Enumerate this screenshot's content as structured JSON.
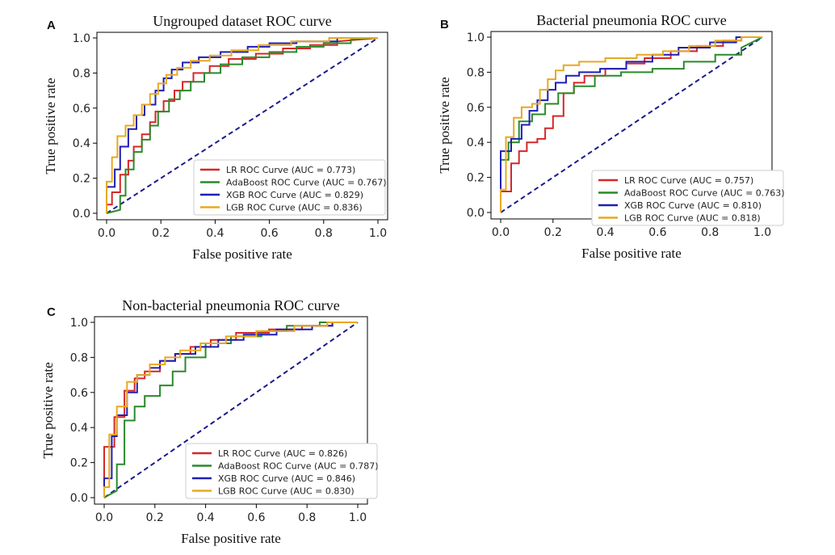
{
  "chart_data": [
    {
      "panel": "A",
      "type": "line",
      "title": "Ungrouped dataset ROC curve",
      "xlabel": "False positive rate",
      "ylabel": "True positive rate",
      "xlim": [
        0,
        1
      ],
      "ylim": [
        0,
        1
      ],
      "ticks": [
        "0.0",
        "0.2",
        "0.4",
        "0.6",
        "0.8",
        "1.0"
      ],
      "legend_position": "lower-right",
      "diagonal_color": "#1a1a8c",
      "series": [
        {
          "name": "LR ROC Curve (AUC = 0.773)",
          "color": "#d62728",
          "x": [
            0,
            0,
            0.02,
            0.02,
            0.05,
            0.05,
            0.08,
            0.08,
            0.1,
            0.1,
            0.13,
            0.13,
            0.16,
            0.16,
            0.18,
            0.18,
            0.21,
            0.21,
            0.25,
            0.25,
            0.28,
            0.28,
            0.32,
            0.32,
            0.38,
            0.38,
            0.45,
            0.45,
            0.55,
            0.55,
            0.65,
            0.65,
            0.75,
            0.75,
            0.85,
            0.85,
            1.0
          ],
          "y": [
            0,
            0.05,
            0.05,
            0.12,
            0.12,
            0.22,
            0.22,
            0.3,
            0.3,
            0.38,
            0.38,
            0.45,
            0.45,
            0.52,
            0.52,
            0.58,
            0.58,
            0.64,
            0.64,
            0.7,
            0.7,
            0.75,
            0.75,
            0.8,
            0.8,
            0.84,
            0.84,
            0.88,
            0.88,
            0.91,
            0.91,
            0.94,
            0.94,
            0.96,
            0.96,
            0.98,
            1.0
          ]
        },
        {
          "name": "AdaBoost ROC Curve (AUC = 0.767)",
          "color": "#2a8a2a",
          "x": [
            0,
            0.05,
            0.05,
            0.07,
            0.07,
            0.1,
            0.1,
            0.13,
            0.13,
            0.16,
            0.16,
            0.19,
            0.19,
            0.23,
            0.23,
            0.27,
            0.27,
            0.31,
            0.31,
            0.36,
            0.36,
            0.42,
            0.42,
            0.5,
            0.5,
            0.6,
            0.6,
            0.7,
            0.7,
            0.8,
            0.8,
            0.9,
            0.9,
            1.0
          ],
          "y": [
            0,
            0.02,
            0.1,
            0.1,
            0.25,
            0.25,
            0.35,
            0.35,
            0.42,
            0.42,
            0.5,
            0.5,
            0.58,
            0.58,
            0.65,
            0.65,
            0.7,
            0.7,
            0.75,
            0.75,
            0.8,
            0.8,
            0.85,
            0.85,
            0.89,
            0.89,
            0.92,
            0.92,
            0.95,
            0.95,
            0.97,
            0.97,
            0.99,
            1.0
          ]
        },
        {
          "name": "XGB ROC Curve (AUC = 0.829)",
          "color": "#1f1fb4",
          "x": [
            0,
            0,
            0.03,
            0.03,
            0.05,
            0.05,
            0.08,
            0.08,
            0.11,
            0.11,
            0.14,
            0.14,
            0.18,
            0.18,
            0.21,
            0.21,
            0.24,
            0.24,
            0.28,
            0.28,
            0.34,
            0.34,
            0.42,
            0.42,
            0.52,
            0.52,
            0.6,
            0.6,
            0.7,
            0.7,
            0.85,
            0.85,
            1.0
          ],
          "y": [
            0,
            0.15,
            0.15,
            0.25,
            0.25,
            0.38,
            0.38,
            0.48,
            0.48,
            0.56,
            0.56,
            0.62,
            0.62,
            0.7,
            0.7,
            0.77,
            0.77,
            0.82,
            0.82,
            0.86,
            0.86,
            0.89,
            0.89,
            0.92,
            0.92,
            0.95,
            0.95,
            0.97,
            0.97,
            0.98,
            0.98,
            1.0,
            1.0
          ]
        },
        {
          "name": "LGB ROC Curve (AUC = 0.836)",
          "color": "#e8a820",
          "x": [
            0,
            0,
            0.02,
            0.02,
            0.04,
            0.04,
            0.07,
            0.07,
            0.1,
            0.1,
            0.13,
            0.13,
            0.16,
            0.16,
            0.19,
            0.19,
            0.22,
            0.22,
            0.26,
            0.26,
            0.31,
            0.31,
            0.38,
            0.38,
            0.46,
            0.46,
            0.56,
            0.56,
            0.68,
            0.68,
            0.82,
            0.82,
            1.0
          ],
          "y": [
            0,
            0.18,
            0.18,
            0.32,
            0.32,
            0.44,
            0.44,
            0.5,
            0.5,
            0.56,
            0.56,
            0.62,
            0.62,
            0.68,
            0.68,
            0.74,
            0.74,
            0.79,
            0.79,
            0.83,
            0.83,
            0.87,
            0.87,
            0.9,
            0.9,
            0.93,
            0.93,
            0.96,
            0.96,
            0.98,
            0.98,
            1.0,
            1.0
          ]
        }
      ]
    },
    {
      "panel": "B",
      "type": "line",
      "title": "Bacterial pneumonia ROC curve",
      "xlabel": "False positive rate",
      "ylabel": "True positive rate",
      "xlim": [
        0,
        1
      ],
      "ylim": [
        0,
        1
      ],
      "ticks": [
        "0.0",
        "0.2",
        "0.4",
        "0.6",
        "0.8",
        "1.0"
      ],
      "legend_position": "lower-right",
      "diagonal_color": "#1a1a8c",
      "series": [
        {
          "name": "LR ROC Curve (AUC = 0.757)",
          "color": "#d62728",
          "x": [
            0,
            0,
            0.04,
            0.04,
            0.07,
            0.07,
            0.1,
            0.1,
            0.14,
            0.14,
            0.17,
            0.17,
            0.2,
            0.2,
            0.24,
            0.24,
            0.28,
            0.28,
            0.32,
            0.32,
            0.4,
            0.4,
            0.48,
            0.48,
            0.55,
            0.55,
            0.65,
            0.65,
            0.75,
            0.75,
            0.85,
            0.85,
            0.92,
            0.92,
            1.0
          ],
          "y": [
            0,
            0.12,
            0.12,
            0.28,
            0.28,
            0.35,
            0.35,
            0.4,
            0.4,
            0.42,
            0.42,
            0.48,
            0.48,
            0.55,
            0.55,
            0.68,
            0.68,
            0.74,
            0.74,
            0.78,
            0.78,
            0.82,
            0.82,
            0.85,
            0.85,
            0.88,
            0.88,
            0.92,
            0.92,
            0.95,
            0.95,
            0.98,
            0.98,
            1.0,
            1.0
          ]
        },
        {
          "name": "AdaBoost ROC Curve (AUC = 0.763)",
          "color": "#2a8a2a",
          "x": [
            0,
            0,
            0.03,
            0.03,
            0.07,
            0.07,
            0.12,
            0.12,
            0.17,
            0.17,
            0.22,
            0.22,
            0.28,
            0.28,
            0.36,
            0.36,
            0.46,
            0.46,
            0.58,
            0.58,
            0.7,
            0.7,
            0.82,
            0.82,
            0.92,
            0.92,
            1.0
          ],
          "y": [
            0,
            0.3,
            0.3,
            0.4,
            0.4,
            0.52,
            0.52,
            0.56,
            0.56,
            0.62,
            0.62,
            0.68,
            0.68,
            0.72,
            0.72,
            0.78,
            0.78,
            0.8,
            0.8,
            0.82,
            0.82,
            0.86,
            0.86,
            0.9,
            0.9,
            0.94,
            1.0
          ]
        },
        {
          "name": "XGB ROC Curve (AUC = 0.810)",
          "color": "#1f1fb4",
          "x": [
            0,
            0,
            0.04,
            0.04,
            0.08,
            0.08,
            0.11,
            0.11,
            0.14,
            0.14,
            0.18,
            0.18,
            0.21,
            0.21,
            0.25,
            0.25,
            0.3,
            0.3,
            0.38,
            0.38,
            0.48,
            0.48,
            0.58,
            0.58,
            0.68,
            0.68,
            0.8,
            0.8,
            0.9,
            0.9,
            1.0
          ],
          "y": [
            0,
            0.35,
            0.35,
            0.42,
            0.42,
            0.5,
            0.5,
            0.58,
            0.58,
            0.64,
            0.64,
            0.7,
            0.7,
            0.74,
            0.74,
            0.78,
            0.78,
            0.8,
            0.8,
            0.82,
            0.82,
            0.86,
            0.86,
            0.9,
            0.9,
            0.94,
            0.94,
            0.97,
            0.97,
            1.0,
            1.0
          ]
        },
        {
          "name": "LGB ROC Curve (AUC = 0.818)",
          "color": "#e8a820",
          "x": [
            0,
            0,
            0.02,
            0.02,
            0.05,
            0.05,
            0.08,
            0.08,
            0.12,
            0.12,
            0.15,
            0.15,
            0.18,
            0.18,
            0.21,
            0.21,
            0.24,
            0.24,
            0.3,
            0.3,
            0.4,
            0.4,
            0.52,
            0.52,
            0.62,
            0.62,
            0.72,
            0.72,
            0.82,
            0.82,
            0.92,
            0.92,
            1.0
          ],
          "y": [
            0,
            0.13,
            0.13,
            0.43,
            0.43,
            0.54,
            0.54,
            0.6,
            0.6,
            0.62,
            0.62,
            0.7,
            0.7,
            0.76,
            0.76,
            0.81,
            0.81,
            0.84,
            0.84,
            0.86,
            0.86,
            0.88,
            0.88,
            0.9,
            0.9,
            0.92,
            0.92,
            0.95,
            0.95,
            0.98,
            0.98,
            1.0,
            1.0
          ]
        }
      ]
    },
    {
      "panel": "C",
      "type": "line",
      "title": "Non-bacterial pneumonia ROC curve",
      "xlabel": "False positive rate",
      "ylabel": "True positive rate",
      "xlim": [
        0,
        1
      ],
      "ylim": [
        0,
        1
      ],
      "ticks": [
        "0.0",
        "0.2",
        "0.4",
        "0.6",
        "0.8",
        "1.0"
      ],
      "legend_position": "lower-right",
      "diagonal_color": "#1a1a8c",
      "series": [
        {
          "name": "LR ROC Curve (AUC = 0.826)",
          "color": "#d62728",
          "x": [
            0,
            0,
            0.04,
            0.04,
            0.08,
            0.08,
            0.12,
            0.12,
            0.16,
            0.16,
            0.22,
            0.22,
            0.28,
            0.28,
            0.34,
            0.34,
            0.42,
            0.42,
            0.52,
            0.52,
            0.65,
            0.65,
            0.78,
            0.78,
            0.9,
            0.9,
            1.0
          ],
          "y": [
            0,
            0.29,
            0.29,
            0.46,
            0.46,
            0.61,
            0.61,
            0.68,
            0.68,
            0.72,
            0.72,
            0.78,
            0.78,
            0.82,
            0.82,
            0.86,
            0.86,
            0.9,
            0.9,
            0.94,
            0.94,
            0.96,
            0.96,
            0.98,
            0.98,
            1.0,
            1.0
          ]
        },
        {
          "name": "AdaBoost ROC Curve (AUC = 0.787)",
          "color": "#2a8a2a",
          "x": [
            0,
            0.05,
            0.05,
            0.08,
            0.08,
            0.12,
            0.12,
            0.16,
            0.16,
            0.22,
            0.22,
            0.27,
            0.27,
            0.32,
            0.32,
            0.4,
            0.4,
            0.5,
            0.5,
            0.62,
            0.62,
            0.72,
            0.72,
            0.85,
            0.85,
            1.0
          ],
          "y": [
            0,
            0.04,
            0.19,
            0.19,
            0.44,
            0.44,
            0.52,
            0.52,
            0.58,
            0.58,
            0.64,
            0.64,
            0.72,
            0.72,
            0.8,
            0.8,
            0.88,
            0.88,
            0.92,
            0.92,
            0.95,
            0.95,
            0.98,
            0.98,
            1.0,
            1.0
          ]
        },
        {
          "name": "XGB ROC Curve (AUC = 0.846)",
          "color": "#1f1fb4",
          "x": [
            0,
            0,
            0.03,
            0.03,
            0.05,
            0.05,
            0.09,
            0.09,
            0.13,
            0.13,
            0.18,
            0.18,
            0.22,
            0.22,
            0.28,
            0.28,
            0.36,
            0.36,
            0.45,
            0.45,
            0.55,
            0.55,
            0.68,
            0.68,
            0.82,
            0.82,
            0.9,
            0.9,
            1.0
          ],
          "y": [
            0,
            0.11,
            0.11,
            0.35,
            0.35,
            0.47,
            0.47,
            0.6,
            0.6,
            0.7,
            0.7,
            0.74,
            0.74,
            0.78,
            0.78,
            0.82,
            0.82,
            0.86,
            0.86,
            0.9,
            0.9,
            0.93,
            0.93,
            0.96,
            0.96,
            0.98,
            0.98,
            1.0,
            1.0
          ]
        },
        {
          "name": "LGB ROC Curve (AUC = 0.830)",
          "color": "#e8a820",
          "x": [
            0,
            0,
            0.02,
            0.02,
            0.05,
            0.05,
            0.09,
            0.09,
            0.13,
            0.13,
            0.18,
            0.18,
            0.24,
            0.24,
            0.3,
            0.3,
            0.38,
            0.38,
            0.48,
            0.48,
            0.6,
            0.6,
            0.75,
            0.75,
            0.88,
            0.88,
            1.0
          ],
          "y": [
            0,
            0.06,
            0.06,
            0.36,
            0.36,
            0.52,
            0.52,
            0.66,
            0.66,
            0.7,
            0.7,
            0.76,
            0.76,
            0.8,
            0.8,
            0.84,
            0.84,
            0.88,
            0.88,
            0.92,
            0.92,
            0.95,
            0.95,
            0.98,
            0.98,
            1.0,
            1.0
          ]
        }
      ]
    }
  ]
}
